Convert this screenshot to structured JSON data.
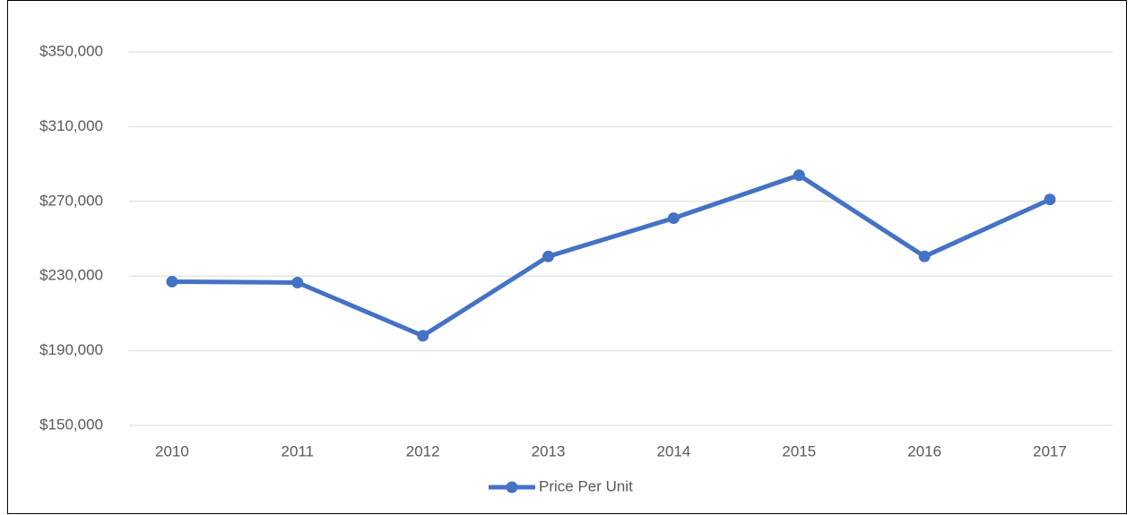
{
  "chart_data": {
    "type": "line",
    "categories": [
      "2010",
      "2011",
      "2012",
      "2013",
      "2014",
      "2015",
      "2016",
      "2017"
    ],
    "series": [
      {
        "name": "Price Per Unit",
        "color": "#4472c4",
        "values": [
          227000,
          226500,
          198000,
          240500,
          261000,
          284000,
          240500,
          271000
        ]
      }
    ],
    "ylim": [
      150000,
      350000
    ],
    "yticks": [
      {
        "value": 150000,
        "label": "$150,000"
      },
      {
        "value": 190000,
        "label": "$190,000"
      },
      {
        "value": 230000,
        "label": "$230,000"
      },
      {
        "value": 270000,
        "label": "$270,000"
      },
      {
        "value": 310000,
        "label": "$310,000"
      },
      {
        "value": 350000,
        "label": "$350,000"
      }
    ],
    "grid": true,
    "legend": "bottom"
  }
}
